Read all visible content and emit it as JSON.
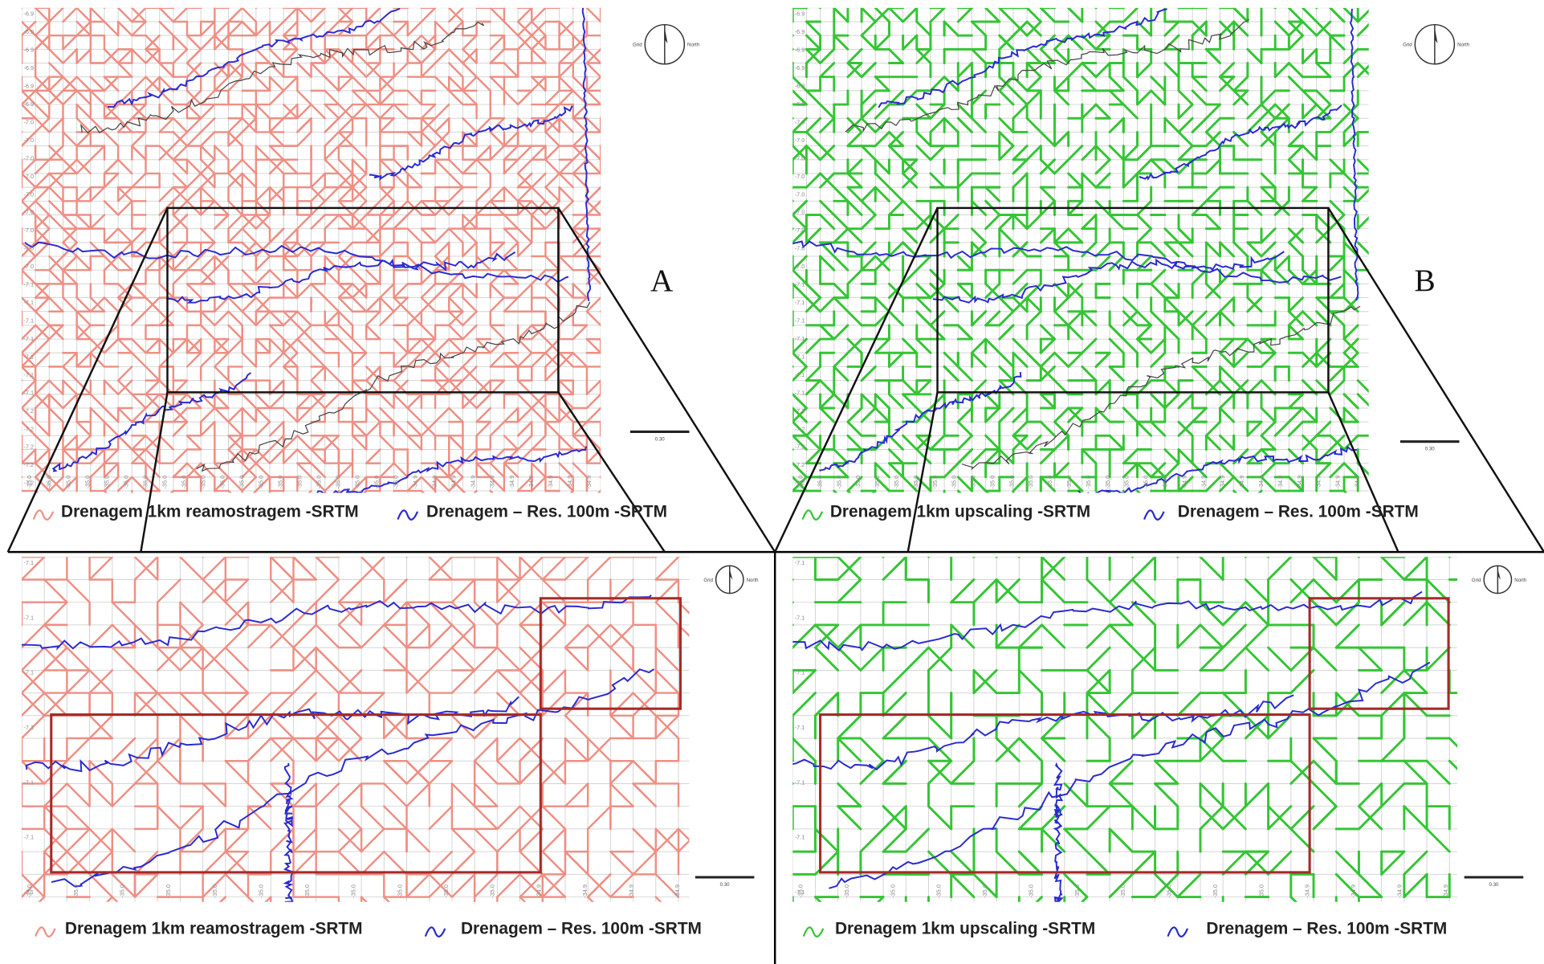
{
  "panels": [
    {
      "label": "A",
      "legend": [
        "Drenagem 1km reamostragem -SRTM",
        "Drenagem – Res. 100m -SRTM"
      ]
    },
    {
      "label": "B",
      "legend": [
        "Drenagem 1km upscaling -SRTM",
        "Drenagem – Res. 100m -SRTM"
      ]
    }
  ],
  "zoom_panels": [
    {
      "legend": [
        "Drenagem 1km reamostragem -SRTM",
        "Drenagem – Res. 100m -SRTM"
      ]
    },
    {
      "legend": [
        "Drenagem 1km upscaling -SRTM",
        "Drenagem – Res. 100m -SRTM"
      ]
    }
  ],
  "compass": {
    "left": "Grid",
    "right": "North"
  },
  "scale": "0.30",
  "top_y_ticks": [
    "-6.9",
    "-6.9",
    "-6.9",
    "-6.9",
    "-6.9",
    "-6.9",
    "-7.0",
    "-7.0",
    "-7.0",
    "-7.0",
    "-7.0",
    "-7.0",
    "-7.0",
    "-7.0",
    "-7.0",
    "-7.1",
    "-7.1",
    "-7.1",
    "-7.1",
    "-7.1",
    "-7.1",
    "-7.1",
    "-7.2",
    "-7.2",
    "-7.2",
    "-7.2",
    "-7.2"
  ],
  "top_x_ticks": [
    "-35.0",
    "-35.0",
    "-35.0",
    "-35.0",
    "-35.0",
    "-35.0",
    "-35.0",
    "-35.0",
    "-35.0",
    "-35.0",
    "-35.0",
    "-35.0",
    "-35.0",
    "-35.0",
    "-35.0",
    "-35.0",
    "-35.0",
    "-35.0",
    "-35.0",
    "-35.0",
    "-34.9",
    "-34.9",
    "-34.9",
    "-34.9",
    "-34.9",
    "-34.9",
    "-34.9",
    "-34.9",
    "-34.9",
    "-34.9"
  ],
  "zoom_y_ticks": [
    "-7.1",
    "-7.1",
    "-7.1",
    "-7.1",
    "-7.1",
    "-7.1",
    "-7.1"
  ],
  "zoom_x_ticks": [
    "-35.0",
    "-35.0",
    "-35.0",
    "-35.0",
    "-35.0",
    "-35.0",
    "-35.0",
    "-35.0",
    "-35.0",
    "-35.0",
    "-35.0",
    "-34.9",
    "-34.9",
    "-34.9",
    "-34.9"
  ]
}
